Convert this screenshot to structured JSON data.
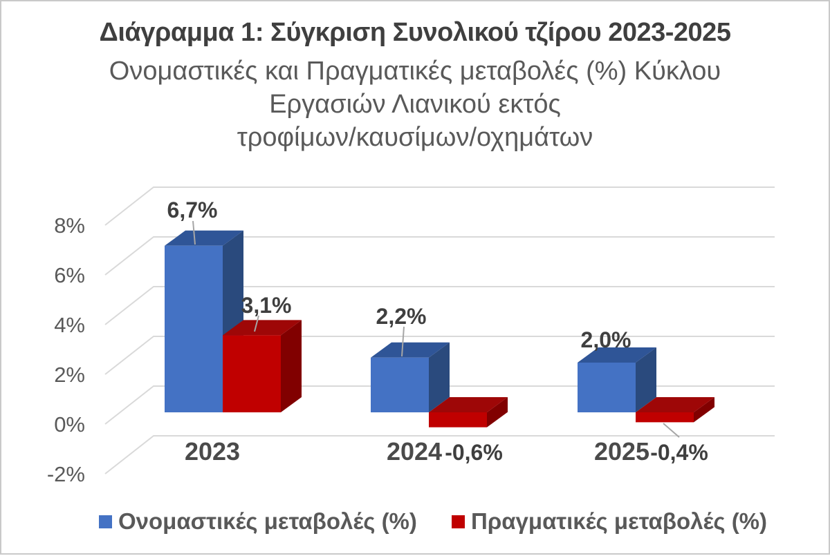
{
  "chart_data": {
    "type": "bar",
    "projection": "3d-clustered-column",
    "title": "Διάγραμμα 1: Σύγκριση Συνολικού τζίρου 2023-2025",
    "subtitle_lines": [
      "Ονομαστικές και Πραγματικές μεταβολές (%) Κύκλου",
      "Εργασιών Λιανικού εκτός",
      "τροφίμων/καυσίμων/οχημάτων"
    ],
    "categories": [
      "2023",
      "2024",
      "2025"
    ],
    "series": [
      {
        "name": "Ονομαστικές μεταβολές (%)",
        "color": "#4472C4",
        "color_top": "#2F5597",
        "color_side": "#2A4A7D",
        "values": [
          6.7,
          2.2,
          2.0
        ],
        "labels": [
          "6,7%",
          "2,2%",
          "2,0%"
        ]
      },
      {
        "name": "Πραγματικές μεταβολές (%)",
        "color": "#C00000",
        "color_top": "#9E0707",
        "color_side": "#810000",
        "values": [
          3.1,
          -0.6,
          -0.4
        ],
        "labels": [
          "3,1%",
          "-0,6%",
          "-0,4%"
        ]
      }
    ],
    "y_axis": {
      "min": -2,
      "max": 8,
      "step": 2,
      "ticks": [
        {
          "label": "8%",
          "value": 8
        },
        {
          "label": "6%",
          "value": 6
        },
        {
          "label": "4%",
          "value": 4
        },
        {
          "label": "2%",
          "value": 2
        },
        {
          "label": "0%",
          "value": 0
        },
        {
          "label": "-2%",
          "value": -2
        }
      ],
      "grid": true
    },
    "legend_position": "bottom",
    "colors": {
      "gridline": "#D9D9D9",
      "leader_line": "#A6A6A6",
      "tick_text": "#595959",
      "data_label_text": "#3F3F3F",
      "category_text": "#4A4A4A",
      "title_text": "#3F3F3F",
      "subtitle_text": "#595959",
      "frame_border": "#C9C9C9",
      "background": "#FFFFFF"
    }
  }
}
